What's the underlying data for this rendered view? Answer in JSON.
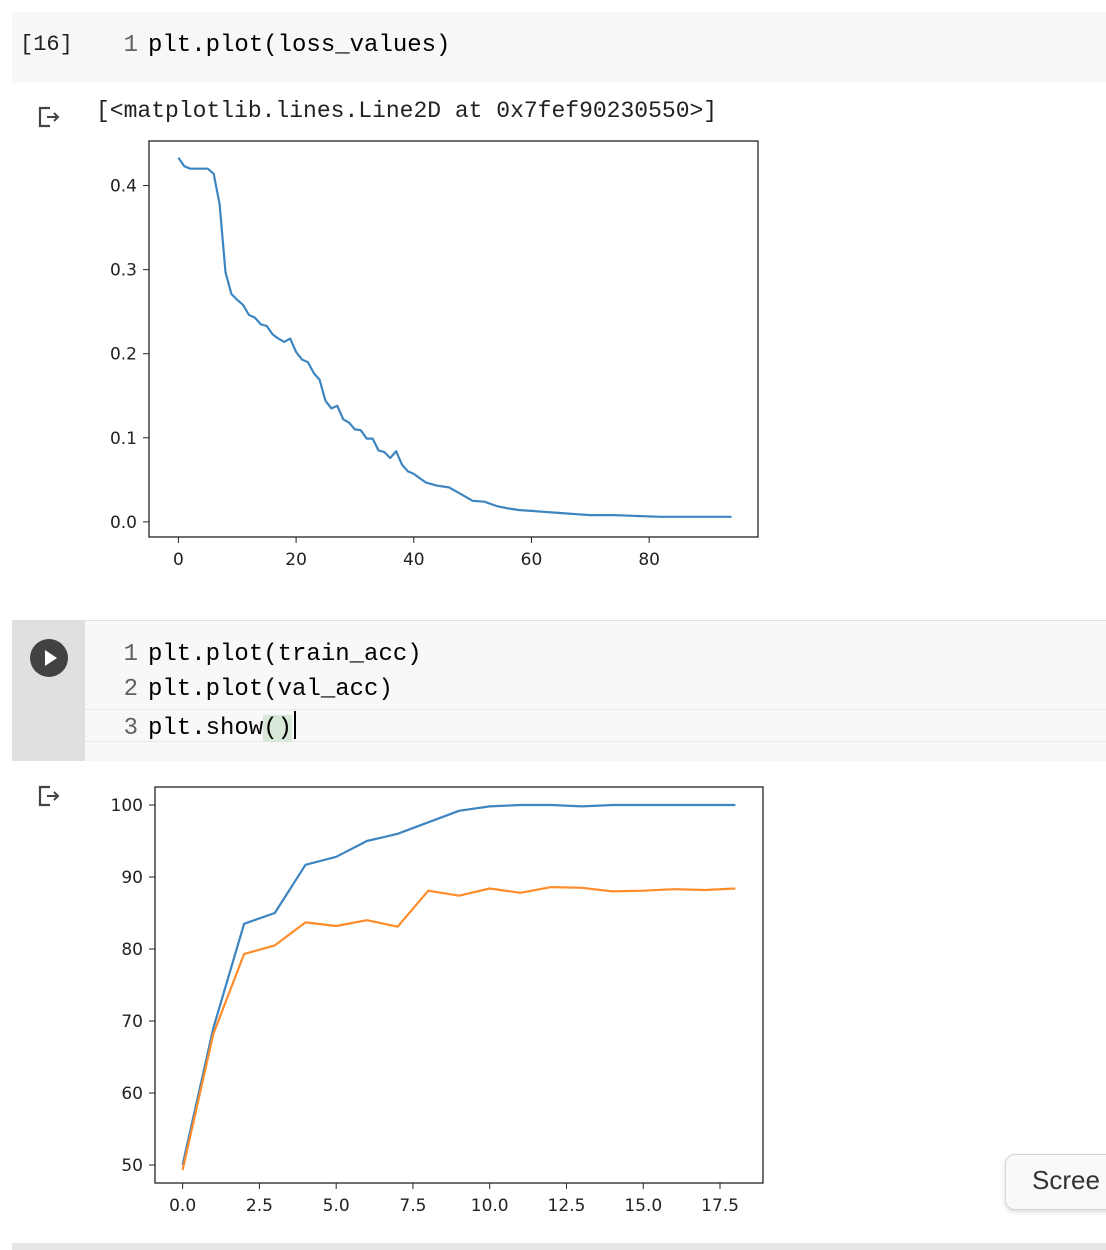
{
  "cell1": {
    "exec_count": "[16]",
    "line_number": "1",
    "code": "plt.plot(loss_values)"
  },
  "output1": {
    "text": "[<matplotlib.lines.Line2D at 0x7fef90230550>]"
  },
  "cell2": {
    "lines": [
      {
        "num": "1",
        "code": "plt.plot(train_acc)"
      },
      {
        "num": "2",
        "code": "plt.plot(val_acc)"
      },
      {
        "num": "3",
        "pre": "plt.show",
        "bracket": "()"
      }
    ]
  },
  "screen_pill": "Scree",
  "icons": {
    "run": "play-icon",
    "output": "output-arrow-icon"
  },
  "colors": {
    "series1": "#3d85c0",
    "series2": "#ff8c2a"
  },
  "chart_data": [
    {
      "type": "line",
      "title": "",
      "xlabel": "",
      "ylabel": "",
      "xlim": [
        -5,
        98.5
      ],
      "ylim": [
        -0.018,
        0.453
      ],
      "xticks": [
        0,
        20,
        40,
        60,
        80
      ],
      "xtick_labels": [
        "0",
        "20",
        "40",
        "60",
        "80"
      ],
      "yticks": [
        0.0,
        0.1,
        0.2,
        0.3,
        0.4
      ],
      "ytick_labels": [
        "0.0",
        "0.1",
        "0.2",
        "0.3",
        "0.4"
      ],
      "series": [
        {
          "color": "#3d85c0",
          "x": [
            0,
            1,
            2,
            3,
            4,
            5,
            6,
            7,
            8,
            9,
            10,
            11,
            12,
            13,
            14,
            15,
            16,
            17,
            18,
            19,
            20,
            21,
            22,
            23,
            24,
            25,
            26,
            27,
            28,
            29,
            30,
            31,
            32,
            33,
            34,
            35,
            36,
            37,
            38,
            39,
            40,
            42,
            44,
            46,
            48,
            50,
            52,
            54,
            56,
            58,
            60,
            62,
            64,
            66,
            68,
            70,
            74,
            78,
            82,
            86,
            90,
            94
          ],
          "y": [
            0.433,
            0.423,
            0.42,
            0.42,
            0.42,
            0.42,
            0.414,
            0.378,
            0.297,
            0.271,
            0.264,
            0.258,
            0.246,
            0.243,
            0.235,
            0.233,
            0.223,
            0.218,
            0.214,
            0.218,
            0.202,
            0.193,
            0.19,
            0.177,
            0.169,
            0.144,
            0.135,
            0.138,
            0.122,
            0.118,
            0.11,
            0.109,
            0.099,
            0.099,
            0.085,
            0.083,
            0.076,
            0.084,
            0.068,
            0.06,
            0.057,
            0.047,
            0.043,
            0.041,
            0.033,
            0.025,
            0.024,
            0.019,
            0.016,
            0.014,
            0.013,
            0.012,
            0.011,
            0.01,
            0.009,
            0.008,
            0.008,
            0.007,
            0.006,
            0.006,
            0.006,
            0.006
          ]
        }
      ]
    },
    {
      "type": "line",
      "title": "",
      "xlabel": "",
      "ylabel": "",
      "xlim": [
        -0.9,
        18.9
      ],
      "ylim": [
        47.5,
        102.5
      ],
      "xticks": [
        0,
        2.5,
        5,
        7.5,
        10,
        12.5,
        15,
        17.5
      ],
      "xtick_labels": [
        "0.0",
        "2.5",
        "5.0",
        "7.5",
        "10.0",
        "12.5",
        "15.0",
        "17.5"
      ],
      "yticks": [
        50,
        60,
        70,
        80,
        90,
        100
      ],
      "ytick_labels": [
        "50",
        "60",
        "70",
        "80",
        "90",
        "100"
      ],
      "series": [
        {
          "color": "#3d85c0",
          "x": [
            0,
            1,
            2,
            3,
            4,
            5,
            6,
            7,
            8,
            9,
            10,
            11,
            12,
            13,
            14,
            15,
            16,
            17,
            18
          ],
          "y": [
            50.0,
            69.0,
            83.5,
            85.0,
            91.7,
            92.8,
            95.0,
            96.0,
            97.6,
            99.2,
            99.8,
            100.0,
            100.0,
            99.8,
            100.0,
            100.0,
            100.0,
            100.0,
            100.0
          ]
        },
        {
          "color": "#ff8c2a",
          "x": [
            0,
            1,
            2,
            3,
            4,
            5,
            6,
            7,
            8,
            9,
            10,
            11,
            12,
            13,
            14,
            15,
            16,
            17,
            18
          ],
          "y": [
            49.3,
            68.2,
            79.3,
            80.5,
            83.7,
            83.2,
            84.0,
            83.1,
            88.1,
            87.4,
            88.4,
            87.8,
            88.6,
            88.5,
            88.0,
            88.1,
            88.3,
            88.2,
            88.4
          ]
        }
      ]
    }
  ]
}
